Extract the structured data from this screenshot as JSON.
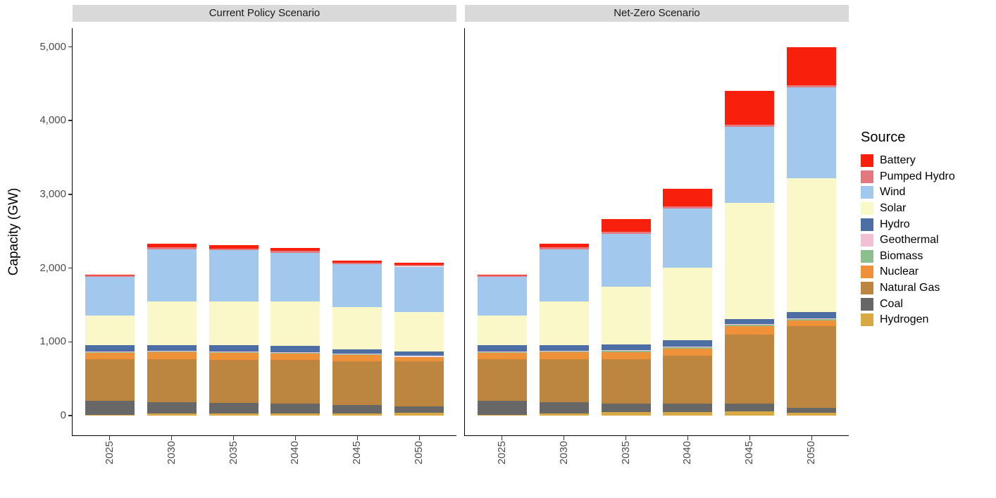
{
  "chart_data": {
    "type": "bar",
    "stacked": true,
    "title": "",
    "ylabel": "Capacity (GW)",
    "xlabel": "",
    "ylim": [
      0,
      5250
    ],
    "grid": false,
    "ytick_values": [
      0,
      1000,
      2000,
      3000,
      4000,
      5000
    ],
    "ytick_labels": [
      "0",
      "1,000",
      "2,000",
      "3,000",
      "4,000",
      "5,000"
    ],
    "categories": [
      "2025",
      "2030",
      "2035",
      "2040",
      "2045",
      "2050"
    ],
    "stack_order_bottom_to_top": [
      "Hydrogen",
      "Coal",
      "Natural Gas",
      "Nuclear",
      "Biomass",
      "Geothermal",
      "Hydro",
      "Solar",
      "Wind",
      "Pumped Hydro",
      "Battery"
    ],
    "legend": {
      "title": "Source",
      "position": "right",
      "order_top_to_bottom": [
        "Battery",
        "Pumped Hydro",
        "Wind",
        "Solar",
        "Hydro",
        "Geothermal",
        "Biomass",
        "Nuclear",
        "Natural Gas",
        "Coal",
        "Hydrogen"
      ]
    },
    "series_colors": {
      "Battery": "#F8200C",
      "Pumped Hydro": "#E4787F",
      "Wind": "#A2C8EE",
      "Solar": "#FAF7C8",
      "Hydro": "#4C6EA4",
      "Geothermal": "#F2BFD4",
      "Biomass": "#8DBE8D",
      "Nuclear": "#EF9139",
      "Natural Gas": "#BC8540",
      "Coal": "#676767",
      "Hydrogen": "#D9A943"
    },
    "facets": [
      {
        "label": "Current Policy Scenario",
        "series": [
          {
            "name": "Hydrogen",
            "values": [
              10,
              25,
              30,
              30,
              30,
              35
            ]
          },
          {
            "name": "Coal",
            "values": [
              190,
              155,
              140,
              130,
              115,
              90
            ]
          },
          {
            "name": "Natural Gas",
            "values": [
              560,
              580,
              585,
              590,
              590,
              610
            ]
          },
          {
            "name": "Nuclear",
            "values": [
              90,
              95,
              95,
              90,
              85,
              55
            ]
          },
          {
            "name": "Biomass",
            "values": [
              18,
              18,
              18,
              18,
              15,
              12
            ]
          },
          {
            "name": "Geothermal",
            "values": [
              5,
              5,
              5,
              5,
              5,
              5
            ]
          },
          {
            "name": "Hydro",
            "values": [
              80,
              80,
              80,
              80,
              55,
              65
            ]
          },
          {
            "name": "Solar",
            "values": [
              400,
              590,
              595,
              600,
              575,
              530
            ]
          },
          {
            "name": "Wind",
            "values": [
              530,
              710,
              695,
              665,
              580,
              618
            ]
          },
          {
            "name": "Pumped Hydro",
            "values": [
              25,
              25,
              25,
              25,
              25,
              25
            ]
          },
          {
            "name": "Battery",
            "values": [
              5,
              45,
              42,
              42,
              28,
              28
            ]
          }
        ],
        "totals": [
          1913,
          2328,
          2310,
          2275,
          2103,
          2073
        ]
      },
      {
        "label": "Net-Zero Scenario",
        "series": [
          {
            "name": "Hydrogen",
            "values": [
              10,
              25,
              45,
              48,
              62,
              38
            ]
          },
          {
            "name": "Coal",
            "values": [
              190,
              155,
              120,
              112,
              96,
              64
            ]
          },
          {
            "name": "Natural Gas",
            "values": [
              560,
              580,
              600,
              650,
              940,
              1110
            ]
          },
          {
            "name": "Nuclear",
            "values": [
              90,
              95,
              95,
              100,
              115,
              80
            ]
          },
          {
            "name": "Biomass",
            "values": [
              18,
              18,
              18,
              18,
              18,
              18
            ]
          },
          {
            "name": "Geothermal",
            "values": [
              5,
              5,
              6,
              6,
              7,
              7
            ]
          },
          {
            "name": "Hydro",
            "values": [
              80,
              80,
              80,
              85,
              72,
              86
            ]
          },
          {
            "name": "Solar",
            "values": [
              400,
              590,
              780,
              990,
              1570,
              1817
            ]
          },
          {
            "name": "Wind",
            "values": [
              530,
              710,
              720,
              800,
              1035,
              1230
            ]
          },
          {
            "name": "Pumped Hydro",
            "values": [
              25,
              25,
              25,
              25,
              25,
              25
            ]
          },
          {
            "name": "Battery",
            "values": [
              5,
              45,
              180,
              245,
              460,
              525
            ]
          }
        ],
        "totals": [
          1913,
          2328,
          2669,
          3079,
          4400,
          5000
        ]
      }
    ]
  }
}
